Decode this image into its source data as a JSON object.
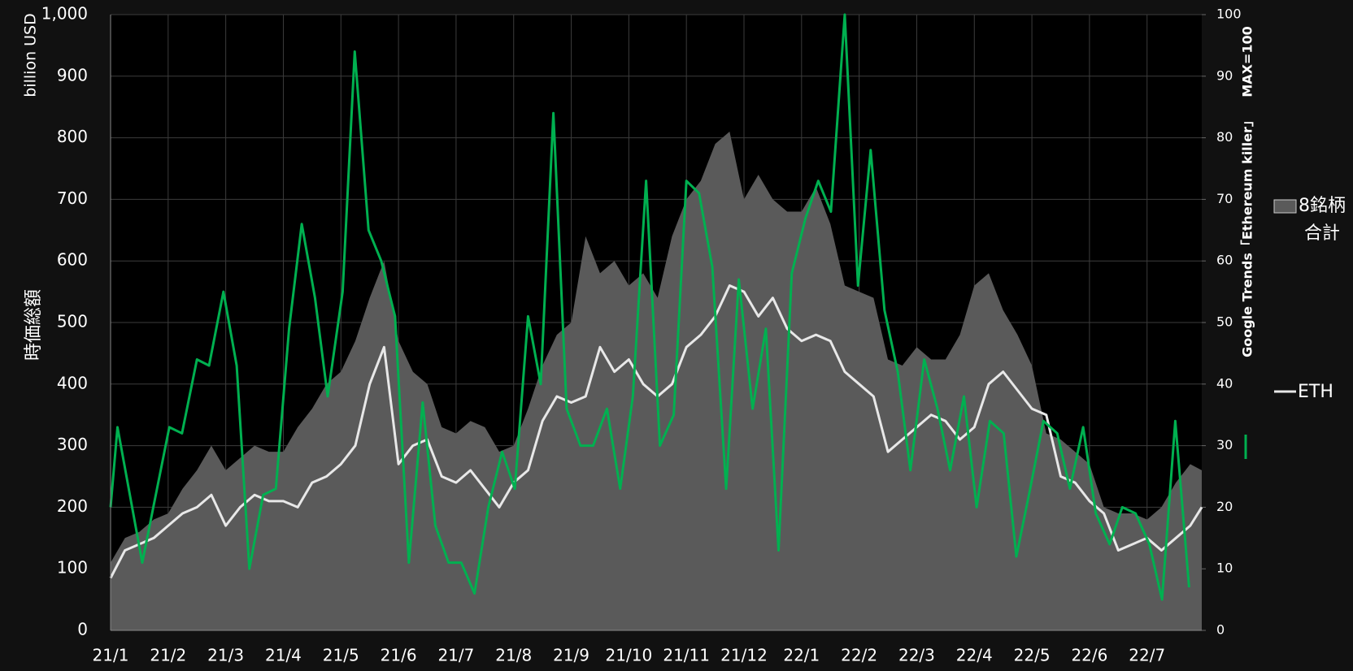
{
  "chart_data": {
    "type": "area-line",
    "ylabel": "時価総額",
    "ylabel_unit": "billion  USD",
    "y2label": "MAX=100",
    "xlim": [
      0,
      18.95
    ],
    "xticks": [
      {
        "value": 0,
        "label": "21/1"
      },
      {
        "value": 1,
        "label": "21/2"
      },
      {
        "value": 2,
        "label": "21/3"
      },
      {
        "value": 3,
        "label": "21/4"
      },
      {
        "value": 4,
        "label": "21/5"
      },
      {
        "value": 5,
        "label": "21/6"
      },
      {
        "value": 6,
        "label": "21/7"
      },
      {
        "value": 7,
        "label": "21/8"
      },
      {
        "value": 8,
        "label": "21/9"
      },
      {
        "value": 9,
        "label": "21/10"
      },
      {
        "value": 10,
        "label": "21/11"
      },
      {
        "value": 11,
        "label": "21/12"
      },
      {
        "value": 12,
        "label": "22/1"
      },
      {
        "value": 13,
        "label": "22/2"
      },
      {
        "value": 14,
        "label": "22/3"
      },
      {
        "value": 15,
        "label": "22/4"
      },
      {
        "value": 16,
        "label": "22/5"
      },
      {
        "value": 17,
        "label": "22/6"
      },
      {
        "value": 18,
        "label": "22/7"
      }
    ],
    "ylim": [
      0,
      1000
    ],
    "yticks": [
      0,
      100,
      200,
      300,
      400,
      500,
      600,
      700,
      800,
      900,
      {
        "value": 1000,
        "label": "1,000"
      }
    ],
    "y2lim": [
      0,
      100
    ],
    "y2ticks": [
      0,
      10,
      20,
      30,
      40,
      50,
      60,
      70,
      80,
      90,
      100
    ],
    "grid": true,
    "series": [
      {
        "name": "8銘柄合計",
        "kind": "area",
        "color": "#5a5a5a",
        "x": [
          0,
          0.25,
          0.5,
          0.75,
          1,
          1.25,
          1.5,
          1.75,
          2,
          2.25,
          2.5,
          2.75,
          3,
          3.25,
          3.5,
          3.75,
          4,
          4.25,
          4.5,
          4.75,
          5,
          5.25,
          5.5,
          5.75,
          6,
          6.25,
          6.5,
          6.75,
          7,
          7.25,
          7.5,
          7.75,
          8,
          8.25,
          8.5,
          8.75,
          9,
          9.25,
          9.5,
          9.75,
          10,
          10.25,
          10.5,
          10.75,
          11,
          11.25,
          11.5,
          11.75,
          12,
          12.25,
          12.5,
          12.75,
          13,
          13.25,
          13.5,
          13.75,
          14,
          14.25,
          14.5,
          14.75,
          15,
          15.25,
          15.5,
          15.75,
          16,
          16.25,
          16.5,
          16.75,
          17,
          17.25,
          17.5,
          17.75,
          18,
          18.25,
          18.5,
          18.75,
          18.95
        ],
        "values": [
          110,
          150,
          160,
          180,
          190,
          230,
          260,
          300,
          260,
          280,
          300,
          290,
          290,
          330,
          360,
          400,
          420,
          470,
          540,
          600,
          470,
          420,
          400,
          330,
          320,
          340,
          330,
          290,
          300,
          360,
          430,
          480,
          500,
          640,
          580,
          600,
          560,
          580,
          540,
          640,
          700,
          730,
          790,
          810,
          700,
          740,
          700,
          680,
          680,
          720,
          660,
          560,
          550,
          540,
          440,
          430,
          460,
          440,
          440,
          480,
          560,
          580,
          520,
          480,
          430,
          320,
          310,
          290,
          270,
          200,
          190,
          190,
          180,
          200,
          240,
          270,
          260
        ]
      },
      {
        "name": "ETH",
        "kind": "line",
        "color": "#e8e8e8",
        "x": [
          0,
          0.25,
          0.5,
          0.75,
          1,
          1.25,
          1.5,
          1.75,
          2,
          2.25,
          2.5,
          2.75,
          3,
          3.25,
          3.5,
          3.75,
          4,
          4.25,
          4.5,
          4.75,
          5,
          5.25,
          5.5,
          5.75,
          6,
          6.25,
          6.5,
          6.75,
          7,
          7.25,
          7.5,
          7.75,
          8,
          8.25,
          8.5,
          8.75,
          9,
          9.25,
          9.5,
          9.75,
          10,
          10.25,
          10.5,
          10.75,
          11,
          11.25,
          11.5,
          11.75,
          12,
          12.25,
          12.5,
          12.75,
          13,
          13.25,
          13.5,
          13.75,
          14,
          14.25,
          14.5,
          14.75,
          15,
          15.25,
          15.5,
          15.75,
          16,
          16.25,
          16.5,
          16.75,
          17,
          17.25,
          17.5,
          17.75,
          18,
          18.25,
          18.5,
          18.75,
          18.95
        ],
        "values": [
          85,
          130,
          140,
          150,
          170,
          190,
          200,
          220,
          170,
          200,
          220,
          210,
          210,
          200,
          240,
          250,
          270,
          300,
          400,
          460,
          270,
          300,
          310,
          250,
          240,
          260,
          230,
          200,
          240,
          260,
          340,
          380,
          370,
          380,
          460,
          420,
          440,
          400,
          380,
          400,
          460,
          480,
          510,
          560,
          550,
          510,
          540,
          490,
          470,
          480,
          470,
          420,
          400,
          380,
          290,
          310,
          330,
          350,
          340,
          310,
          330,
          400,
          420,
          390,
          360,
          350,
          250,
          240,
          210,
          190,
          130,
          140,
          150,
          130,
          150,
          170,
          200
        ]
      },
      {
        "name": "Google Trends「Ethereum killer」",
        "kind": "line",
        "axis": "y2",
        "color": "#00b050",
        "x": [
          0,
          0.12,
          0.55,
          1.02,
          1.24,
          1.5,
          1.71,
          1.96,
          2.19,
          2.41,
          2.65,
          2.87,
          3.1,
          3.32,
          3.55,
          3.77,
          4.03,
          4.24,
          4.48,
          4.7,
          4.94,
          5.18,
          5.42,
          5.64,
          5.87,
          6.09,
          6.32,
          6.56,
          6.8,
          7.02,
          7.25,
          7.47,
          7.69,
          7.92,
          8.16,
          8.38,
          8.62,
          8.85,
          9.07,
          9.3,
          9.54,
          9.78,
          10,
          10.22,
          10.45,
          10.69,
          10.91,
          11.15,
          11.38,
          11.6,
          11.83,
          12.07,
          12.29,
          12.51,
          12.75,
          12.98,
          13.2,
          13.44,
          13.67,
          13.89,
          14.13,
          14.36,
          14.58,
          14.82,
          15.04,
          15.27,
          15.51,
          15.73,
          15.97,
          16.2,
          16.44,
          16.66,
          16.89,
          17.11,
          17.35,
          17.57,
          17.8,
          18.04,
          18.26,
          18.49,
          18.73
        ],
        "values": [
          20,
          33,
          11,
          33,
          32,
          44,
          43,
          55,
          43,
          10,
          22,
          23,
          49,
          66,
          54,
          38,
          55,
          94,
          65,
          60,
          51,
          11,
          37,
          17,
          11,
          11,
          6,
          20,
          29,
          23,
          51,
          40,
          84,
          36,
          30,
          30,
          36,
          23,
          38,
          73,
          30,
          35,
          73,
          71,
          59,
          23,
          57,
          36,
          49,
          13,
          58,
          67,
          73,
          68,
          100,
          56,
          78,
          52,
          42,
          26,
          44,
          36,
          26,
          38,
          20,
          34,
          32,
          12,
          23,
          34,
          32,
          23,
          33,
          19,
          14,
          20,
          19,
          14,
          5,
          34,
          7
        ]
      }
    ]
  }
}
